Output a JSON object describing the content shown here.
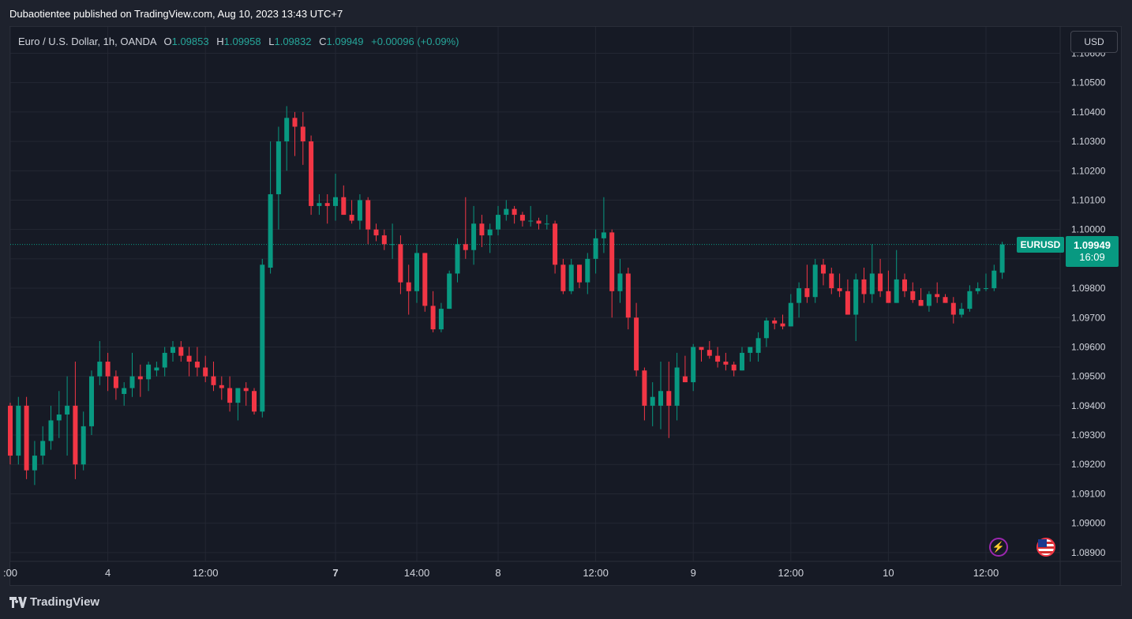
{
  "header": {
    "published_by": "Dubaotientee published on TradingView.com, Aug 10, 2023 13:43 UTC+7"
  },
  "legend": {
    "symbol_desc": "Euro / U.S. Dollar, 1h, OANDA",
    "o_label": "O",
    "o_value": "1.09853",
    "h_label": "H",
    "h_value": "1.09958",
    "l_label": "L",
    "l_value": "1.09832",
    "c_label": "C",
    "c_value": "1.09949",
    "change": "+0.00096 (+0.09%)"
  },
  "currency_button": "USD",
  "price_tag": {
    "symbol": "EURUSD",
    "price": "1.09949",
    "countdown": "16:09"
  },
  "footer": {
    "brand": "TradingView"
  },
  "icons": {
    "lightning": "lightning-icon",
    "flag": "us-flag-icon",
    "logo": "tradingview-logo-icon"
  },
  "colors": {
    "up": "#089981",
    "down": "#f23645",
    "background": "#161a25",
    "grid": "#232733",
    "text": "#d1d4dc"
  },
  "chart_data": {
    "type": "candlestick",
    "title": "",
    "symbol": "EURUSD",
    "interval": "1h",
    "last_price": 1.09949,
    "ylim": [
      1.0887,
      1.1069
    ],
    "y_ticks": [
      1.089,
      1.09,
      1.091,
      1.092,
      1.093,
      1.094,
      1.095,
      1.096,
      1.097,
      1.098,
      1.099,
      1.1,
      1.101,
      1.102,
      1.103,
      1.104,
      1.105,
      1.106
    ],
    "y_tick_labels": [
      "1.08900",
      "1.09000",
      "1.09100",
      "1.09200",
      "1.09300",
      "1.09400",
      "1.09500",
      "1.09600",
      "1.09700",
      "1.09800",
      "1.09900",
      "1.10000",
      "1.10100",
      "1.10200",
      "1.10300",
      "1.10400",
      "1.10500",
      "1.10600"
    ],
    "x_ticks": [
      {
        "label": ":00",
        "index": 0,
        "bold": false
      },
      {
        "label": "4",
        "index": 12,
        "bold": false
      },
      {
        "label": "12:00",
        "index": 24,
        "bold": false
      },
      {
        "label": "7",
        "index": 40,
        "bold": true
      },
      {
        "label": "14:00",
        "index": 50,
        "bold": false
      },
      {
        "label": "8",
        "index": 60,
        "bold": false
      },
      {
        "label": "12:00",
        "index": 72,
        "bold": false
      },
      {
        "label": "9",
        "index": 84,
        "bold": false
      },
      {
        "label": "12:00",
        "index": 96,
        "bold": false
      },
      {
        "label": "10",
        "index": 108,
        "bold": false
      },
      {
        "label": "12:00",
        "index": 120,
        "bold": false
      }
    ],
    "grid": true,
    "candles": [
      [
        1.094,
        1.0941,
        1.092,
        1.0923
      ],
      [
        1.0923,
        1.0943,
        1.092,
        1.094
      ],
      [
        1.094,
        1.0943,
        1.0915,
        1.0918
      ],
      [
        1.0918,
        1.0928,
        1.0913,
        1.0923
      ],
      [
        1.0923,
        1.0933,
        1.092,
        1.0928
      ],
      [
        1.0928,
        1.094,
        1.0925,
        1.0935
      ],
      [
        1.0935,
        1.0945,
        1.0929,
        1.0937
      ],
      [
        1.0937,
        1.095,
        1.0923,
        1.094
      ],
      [
        1.094,
        1.0955,
        1.0915,
        1.092
      ],
      [
        1.092,
        1.0938,
        1.0918,
        1.0933
      ],
      [
        1.0933,
        1.0952,
        1.093,
        1.095
      ],
      [
        1.095,
        1.0962,
        1.0947,
        1.0955
      ],
      [
        1.0955,
        1.0958,
        1.0945,
        1.095
      ],
      [
        1.095,
        1.0952,
        1.0942,
        1.0946
      ],
      [
        1.0944,
        1.0948,
        1.094,
        1.0946
      ],
      [
        1.0946,
        1.0958,
        1.0943,
        1.095
      ],
      [
        1.095,
        1.0954,
        1.0943,
        1.0949
      ],
      [
        1.0949,
        1.0955,
        1.0945,
        1.0954
      ],
      [
        1.0952,
        1.0955,
        1.095,
        1.0953
      ],
      [
        1.0953,
        1.096,
        1.095,
        1.0958
      ],
      [
        1.0958,
        1.0962,
        1.0955,
        1.096
      ],
      [
        1.096,
        1.0962,
        1.0955,
        1.0957
      ],
      [
        1.0957,
        1.096,
        1.095,
        1.0955
      ],
      [
        1.0955,
        1.096,
        1.095,
        1.0953
      ],
      [
        1.0953,
        1.0957,
        1.0948,
        1.095
      ],
      [
        1.095,
        1.0955,
        1.0945,
        1.0947
      ],
      [
        1.0947,
        1.095,
        1.0942,
        1.0946
      ],
      [
        1.0946,
        1.095,
        1.0938,
        1.0941
      ],
      [
        1.0941,
        1.0946,
        1.0935,
        1.0946
      ],
      [
        1.0946,
        1.0948,
        1.094,
        1.0945
      ],
      [
        1.0945,
        1.0946,
        1.0937,
        1.0938
      ],
      [
        1.0938,
        1.099,
        1.0936,
        1.0988
      ],
      [
        1.0987,
        1.103,
        1.0985,
        1.1012
      ],
      [
        1.1012,
        1.1035,
        1.1,
        1.103
      ],
      [
        1.103,
        1.1042,
        1.102,
        1.1038
      ],
      [
        1.1038,
        1.104,
        1.1025,
        1.1035
      ],
      [
        1.1035,
        1.104,
        1.1022,
        1.103
      ],
      [
        1.103,
        1.1032,
        1.1005,
        1.1008
      ],
      [
        1.1008,
        1.1012,
        1.1005,
        1.1009
      ],
      [
        1.1009,
        1.1012,
        1.1002,
        1.1008
      ],
      [
        1.1008,
        1.1019,
        1.1003,
        1.1011
      ],
      [
        1.1011,
        1.1015,
        1.1005,
        1.1005
      ],
      [
        1.1005,
        1.101,
        1.1002,
        1.1003
      ],
      [
        1.1003,
        1.1012,
        1.1,
        1.101
      ],
      [
        1.101,
        1.1011,
        1.0995,
        1.1
      ],
      [
        1.1,
        1.1002,
        1.0996,
        1.0998
      ],
      [
        1.0998,
        1.1,
        1.0993,
        1.0995
      ],
      [
        1.0995,
        1.1002,
        1.099,
        1.0995
      ],
      [
        1.0995,
        1.0998,
        1.0978,
        1.0982
      ],
      [
        1.0982,
        1.0988,
        1.0971,
        1.0979
      ],
      [
        1.0979,
        1.0995,
        1.0975,
        1.0992
      ],
      [
        1.0992,
        1.0992,
        1.0972,
        1.0974
      ],
      [
        1.0974,
        1.0979,
        1.0965,
        1.0966
      ],
      [
        1.0966,
        1.0975,
        1.0965,
        1.0973
      ],
      [
        1.0973,
        1.0986,
        1.0973,
        1.0985
      ],
      [
        1.0985,
        1.0997,
        1.0982,
        1.0995
      ],
      [
        1.0995,
        1.1011,
        1.099,
        1.0993
      ],
      [
        1.0993,
        1.1008,
        1.0988,
        1.1002
      ],
      [
        1.1002,
        1.1005,
        1.0994,
        1.0998
      ],
      [
        1.0998,
        1.1002,
        1.0992,
        1.1
      ],
      [
        1.1,
        1.1008,
        1.0998,
        1.1005
      ],
      [
        1.1005,
        1.101,
        1.1003,
        1.1007
      ],
      [
        1.1007,
        1.1008,
        1.1002,
        1.1005
      ],
      [
        1.1005,
        1.1006,
        1.1001,
        1.1003
      ],
      [
        1.1003,
        1.1008,
        1.1001,
        1.1003
      ],
      [
        1.1003,
        1.1004,
        1.1,
        1.1002
      ],
      [
        1.1002,
        1.1005,
        1.1,
        1.1002
      ],
      [
        1.1002,
        1.1003,
        1.0985,
        1.0988
      ],
      [
        1.0988,
        1.099,
        1.0978,
        1.0979
      ],
      [
        1.0979,
        1.099,
        1.0978,
        1.0988
      ],
      [
        1.0988,
        1.0988,
        1.098,
        1.0982
      ],
      [
        1.0982,
        1.0992,
        1.0978,
        1.099
      ],
      [
        1.099,
        1.1,
        1.0985,
        1.0997
      ],
      [
        1.0997,
        1.1011,
        1.0992,
        1.0999
      ],
      [
        1.0999,
        1.1,
        1.097,
        1.0979
      ],
      [
        1.0979,
        1.099,
        1.0975,
        1.0985
      ],
      [
        1.0985,
        1.0987,
        1.0966,
        1.097
      ],
      [
        1.097,
        1.0975,
        1.095,
        1.0952
      ],
      [
        1.0952,
        1.0953,
        1.0935,
        1.094
      ],
      [
        1.094,
        1.0948,
        1.0933,
        1.0943
      ],
      [
        1.094,
        1.0955,
        1.0932,
        1.0945
      ],
      [
        1.0945,
        1.0955,
        1.0929,
        1.094
      ],
      [
        1.094,
        1.0958,
        1.0935,
        1.0953
      ],
      [
        1.095,
        1.0957,
        1.0948,
        1.0948
      ],
      [
        1.0948,
        1.0961,
        1.0945,
        1.096
      ],
      [
        1.096,
        1.096,
        1.0955,
        1.0959
      ],
      [
        1.0959,
        1.0962,
        1.0956,
        1.0957
      ],
      [
        1.0957,
        1.096,
        1.0953,
        1.0955
      ],
      [
        1.0955,
        1.0958,
        1.0952,
        1.0954
      ],
      [
        1.0954,
        1.0955,
        1.095,
        1.0952
      ],
      [
        1.0952,
        1.096,
        1.0952,
        1.0958
      ],
      [
        1.0958,
        1.096,
        1.0955,
        1.096
      ],
      [
        1.0958,
        1.0965,
        1.0955,
        1.0963
      ],
      [
        1.0963,
        1.097,
        1.096,
        1.0969
      ],
      [
        1.0969,
        1.097,
        1.0966,
        1.0968
      ],
      [
        1.0968,
        1.0971,
        1.0966,
        1.0967
      ],
      [
        1.0967,
        1.0978,
        1.0967,
        1.0975
      ],
      [
        1.0975,
        1.0982,
        1.097,
        1.098
      ],
      [
        1.098,
        1.0988,
        1.0975,
        1.0977
      ],
      [
        1.0977,
        1.099,
        1.0975,
        1.0988
      ],
      [
        1.0988,
        1.099,
        1.0981,
        1.0985
      ],
      [
        1.0985,
        1.0987,
        1.0978,
        1.098
      ],
      [
        1.098,
        1.0985,
        1.0977,
        1.0979
      ],
      [
        1.0979,
        1.0983,
        1.0971,
        1.0971
      ],
      [
        1.0971,
        1.0985,
        1.0962,
        1.0983
      ],
      [
        1.0983,
        1.0987,
        1.0975,
        1.0978
      ],
      [
        1.0978,
        1.0995,
        1.0975,
        1.0985
      ],
      [
        1.0985,
        1.099,
        1.0977,
        1.0979
      ],
      [
        1.0979,
        1.0986,
        1.0975,
        1.0975
      ],
      [
        1.0975,
        1.0993,
        1.0975,
        1.0983
      ],
      [
        1.0983,
        1.0985,
        1.0977,
        1.0979
      ],
      [
        1.0979,
        1.0982,
        1.0975,
        1.0976
      ],
      [
        1.0976,
        1.098,
        1.0974,
        1.0974
      ],
      [
        1.0974,
        1.0979,
        1.0972,
        1.0978
      ],
      [
        1.0978,
        1.0982,
        1.0975,
        1.0977
      ],
      [
        1.0977,
        1.0978,
        1.0975,
        1.0975
      ],
      [
        1.0975,
        1.0977,
        1.0968,
        1.0971
      ],
      [
        1.0971,
        1.0975,
        1.097,
        1.0973
      ],
      [
        1.0973,
        1.0981,
        1.0972,
        1.0979
      ],
      [
        1.0979,
        1.0982,
        1.0978,
        1.098
      ],
      [
        1.098,
        1.0985,
        1.0979,
        1.098
      ],
      [
        1.098,
        1.0988,
        1.0979,
        1.0986
      ],
      [
        1.09853,
        1.09958,
        1.09832,
        1.09949
      ]
    ]
  }
}
